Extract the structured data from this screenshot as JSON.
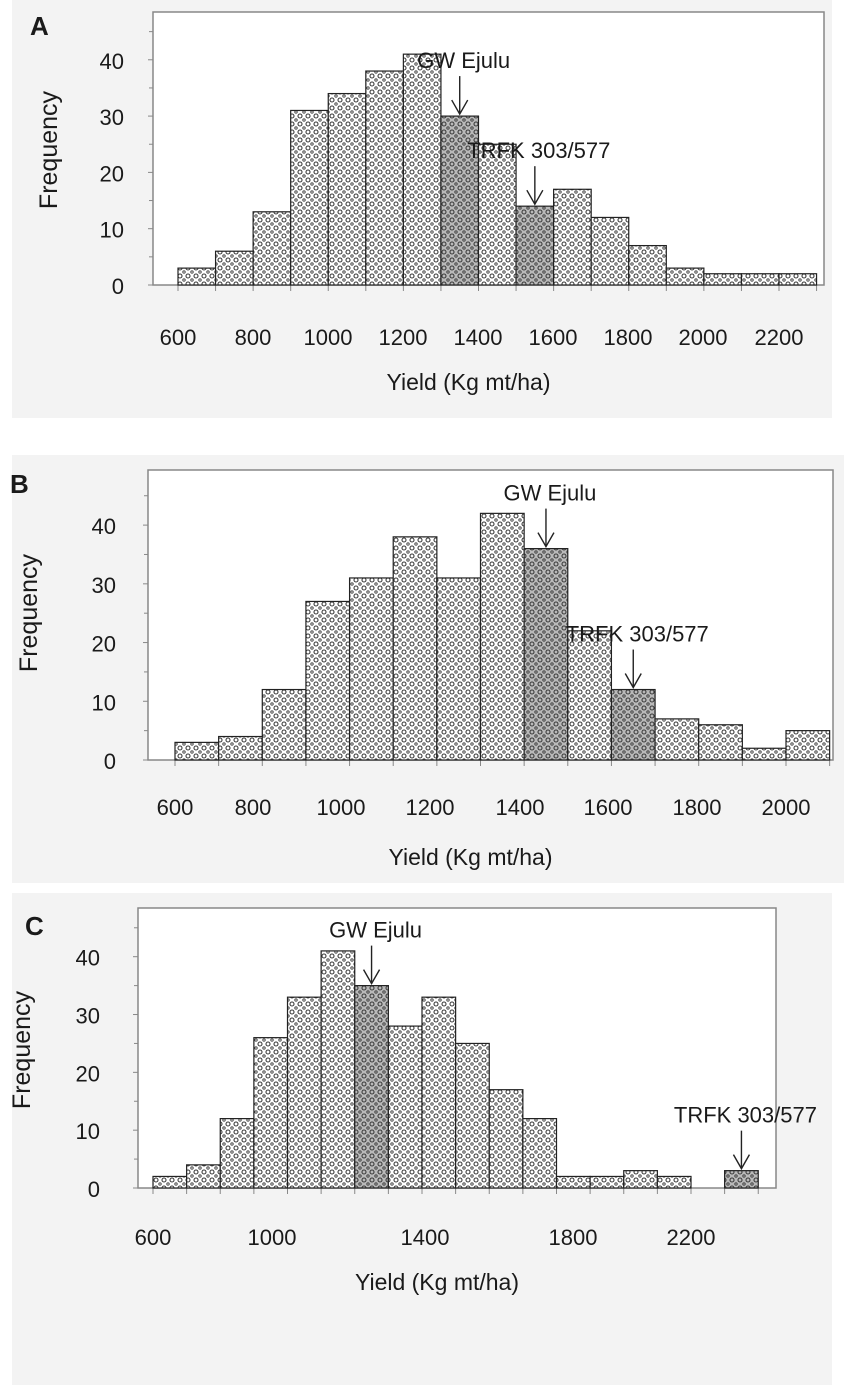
{
  "colors": {
    "background": "#ffffff",
    "panel_background": "#f3f3f3",
    "bar_fill": "#ffffff",
    "bar_pattern": "#3a3a3a",
    "highlight_fill": "#b9b9b9",
    "axis_line": "#888888"
  },
  "chart_data": [
    {
      "type": "bar",
      "panel_label": "A",
      "xlabel": "Yield (Kg mt/ha)",
      "ylabel": "Frequency",
      "x_ticks": [
        "600",
        "800",
        "1000",
        "1200",
        "1400",
        "1600",
        "1800",
        "2000",
        "2200"
      ],
      "y_ticks": [
        "0",
        "10",
        "20",
        "30",
        "40"
      ],
      "xlim": [
        600,
        2300
      ],
      "ylim": [
        0,
        46
      ],
      "bin_width": 100,
      "bins": [
        {
          "x0": 600,
          "value": 3
        },
        {
          "x0": 700,
          "value": 6
        },
        {
          "x0": 800,
          "value": 13
        },
        {
          "x0": 900,
          "value": 31
        },
        {
          "x0": 1000,
          "value": 34
        },
        {
          "x0": 1100,
          "value": 38
        },
        {
          "x0": 1200,
          "value": 41
        },
        {
          "x0": 1300,
          "value": 30,
          "highlight": true
        },
        {
          "x0": 1400,
          "value": 25
        },
        {
          "x0": 1500,
          "value": 14,
          "highlight": true
        },
        {
          "x0": 1600,
          "value": 17
        },
        {
          "x0": 1700,
          "value": 12
        },
        {
          "x0": 1800,
          "value": 7
        },
        {
          "x0": 1900,
          "value": 3
        },
        {
          "x0": 2000,
          "value": 2
        },
        {
          "x0": 2100,
          "value": 2
        },
        {
          "x0": 2200,
          "value": 2
        }
      ],
      "annotations": [
        {
          "label": "GW Ejulu",
          "x": 1350,
          "y": 30
        },
        {
          "label": "TRFK 303/577",
          "x": 1550,
          "y": 14
        }
      ]
    },
    {
      "type": "bar",
      "panel_label": "B",
      "xlabel": "Yield (Kg mt/ha)",
      "ylabel": "Frequency",
      "x_ticks": [
        "600",
        "800",
        "1000",
        "1200",
        "1400",
        "1600",
        "1800",
        "2000"
      ],
      "y_ticks": [
        "0",
        "10",
        "20",
        "30",
        "40"
      ],
      "xlim": [
        600,
        2100
      ],
      "ylim": [
        0,
        47
      ],
      "bin_width": 100,
      "bins": [
        {
          "x0": 600,
          "value": 3
        },
        {
          "x0": 700,
          "value": 4
        },
        {
          "x0": 800,
          "value": 12
        },
        {
          "x0": 900,
          "value": 27
        },
        {
          "x0": 1000,
          "value": 31
        },
        {
          "x0": 1100,
          "value": 38
        },
        {
          "x0": 1200,
          "value": 31
        },
        {
          "x0": 1300,
          "value": 42
        },
        {
          "x0": 1400,
          "value": 36,
          "highlight": true
        },
        {
          "x0": 1500,
          "value": 22
        },
        {
          "x0": 1600,
          "value": 12,
          "highlight": true
        },
        {
          "x0": 1700,
          "value": 7
        },
        {
          "x0": 1800,
          "value": 6
        },
        {
          "x0": 1900,
          "value": 2
        },
        {
          "x0": 2000,
          "value": 5
        }
      ],
      "annotations": [
        {
          "label": "GW Ejulu",
          "x": 1450,
          "y": 36
        },
        {
          "label": "TRFK 303/577",
          "x": 1650,
          "y": 12
        }
      ]
    },
    {
      "type": "bar",
      "panel_label": "C",
      "xlabel": "Yield (Kg mt/ha)",
      "ylabel": "Frequency",
      "x_ticks": [
        "600",
        "1000",
        "1400",
        "1800",
        "2200"
      ],
      "y_ticks": [
        "0",
        "10",
        "20",
        "30",
        "40"
      ],
      "xlim": [
        600,
        2400
      ],
      "ylim": [
        0,
        46
      ],
      "bin_width": 100,
      "bins": [
        {
          "x0": 600,
          "value": 2
        },
        {
          "x0": 700,
          "value": 4
        },
        {
          "x0": 800,
          "value": 12
        },
        {
          "x0": 900,
          "value": 26
        },
        {
          "x0": 1000,
          "value": 33
        },
        {
          "x0": 1100,
          "value": 41
        },
        {
          "x0": 1200,
          "value": 35,
          "highlight": true
        },
        {
          "x0": 1300,
          "value": 28
        },
        {
          "x0": 1400,
          "value": 33
        },
        {
          "x0": 1500,
          "value": 25
        },
        {
          "x0": 1600,
          "value": 17
        },
        {
          "x0": 1700,
          "value": 12
        },
        {
          "x0": 1800,
          "value": 2
        },
        {
          "x0": 1900,
          "value": 2
        },
        {
          "x0": 2000,
          "value": 3
        },
        {
          "x0": 2100,
          "value": 2
        },
        {
          "x0": 2200,
          "value": 0
        },
        {
          "x0": 2300,
          "value": 3,
          "highlight": true
        }
      ],
      "annotations": [
        {
          "label": "GW Ejulu",
          "x": 1250,
          "y": 35
        },
        {
          "label": "TRFK 303/577",
          "x": 2350,
          "y": 3
        }
      ]
    }
  ]
}
